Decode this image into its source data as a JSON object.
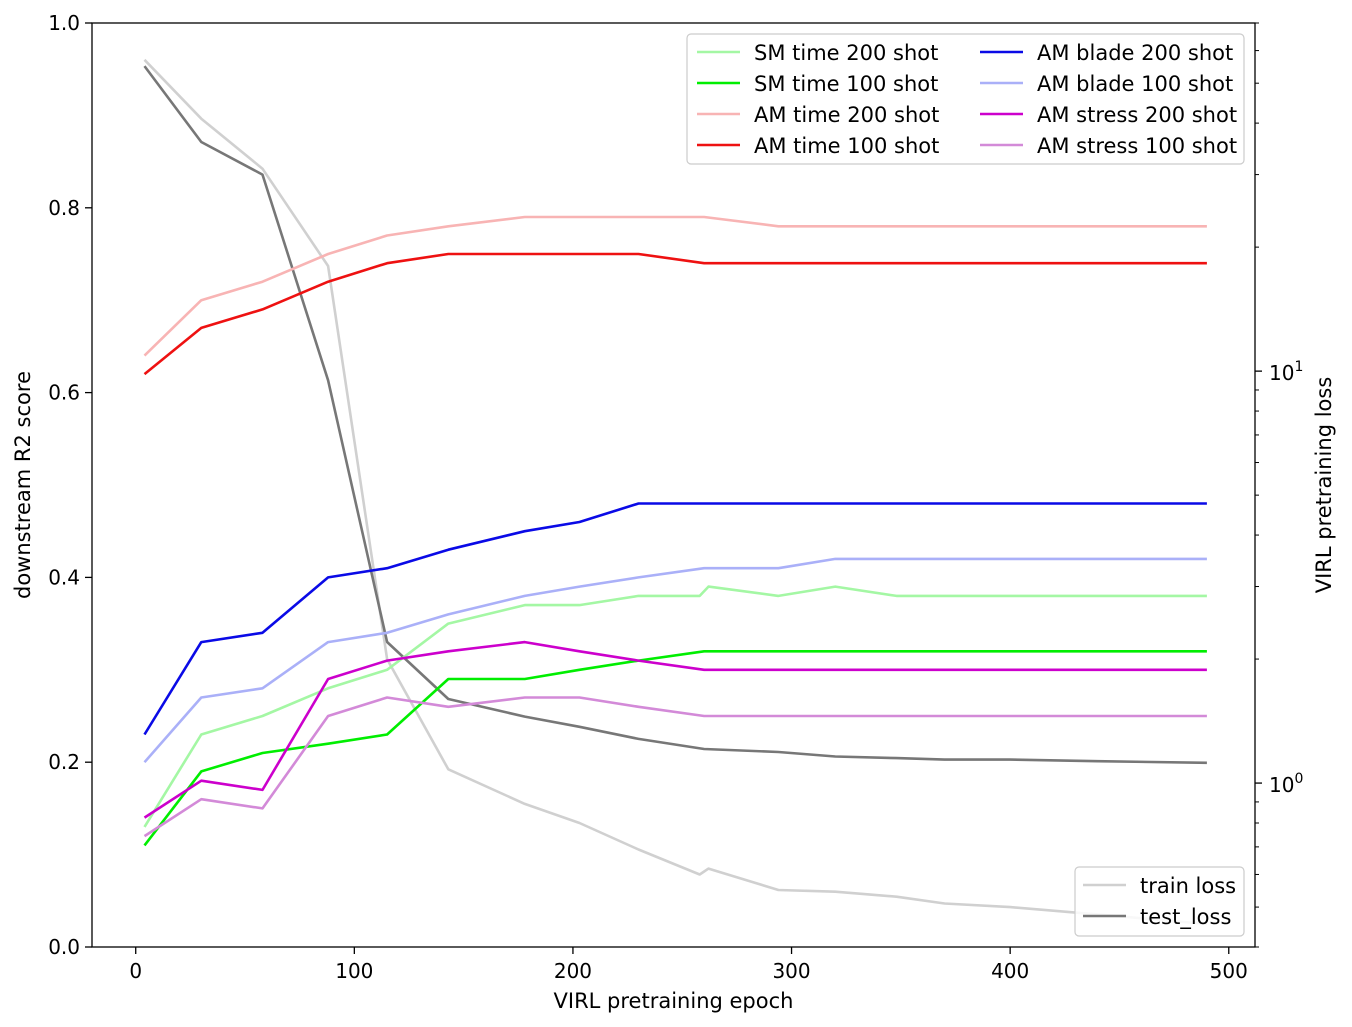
{
  "chart_data": {
    "type": "line",
    "title": "",
    "xlabel": "VIRL pretraining epoch",
    "ylabel": "downstream R2 score",
    "y2label": "VIRL pretraining loss",
    "xlim": [
      -20,
      512
    ],
    "ylim": [
      0,
      1
    ],
    "y2_scale": "log",
    "y2lim": [
      0.4,
      70
    ],
    "x_ticks": [
      0,
      100,
      200,
      300,
      400,
      500
    ],
    "x_tick_labels": [
      "0",
      "100",
      "200",
      "300",
      "400",
      "500"
    ],
    "y_ticks": [
      0.0,
      0.2,
      0.4,
      0.6,
      0.8,
      1.0
    ],
    "y_tick_labels": [
      "0.0",
      "0.2",
      "0.4",
      "0.6",
      "0.8",
      "1.0"
    ],
    "y2_ticks": [
      1,
      10
    ],
    "y2_tick_labels": [
      {
        "base": "10",
        "exp": "0"
      },
      {
        "base": "10",
        "exp": "1"
      }
    ],
    "grid": false,
    "legend_position": "top-right",
    "loss_legend_position": "bottom-right",
    "series": [
      {
        "name": "SM time 200 shot",
        "color": "#a4f7a4",
        "axis": "left",
        "x": [
          4,
          30,
          58,
          88,
          115,
          143,
          178,
          203,
          230,
          258,
          262,
          294,
          320,
          348,
          490
        ],
        "y": [
          0.13,
          0.23,
          0.25,
          0.28,
          0.3,
          0.35,
          0.37,
          0.37,
          0.38,
          0.38,
          0.39,
          0.38,
          0.39,
          0.38,
          0.38
        ]
      },
      {
        "name": "SM time 100 shot",
        "color": "#00ee00",
        "axis": "left",
        "x": [
          4,
          30,
          58,
          88,
          115,
          143,
          178,
          203,
          230,
          260,
          294,
          490
        ],
        "y": [
          0.11,
          0.19,
          0.21,
          0.22,
          0.23,
          0.29,
          0.29,
          0.3,
          0.31,
          0.32,
          0.32,
          0.32
        ]
      },
      {
        "name": "AM time 200 shot",
        "color": "#f8b4b4",
        "axis": "left",
        "x": [
          4,
          30,
          58,
          88,
          115,
          143,
          178,
          203,
          230,
          260,
          294,
          490
        ],
        "y": [
          0.64,
          0.7,
          0.72,
          0.75,
          0.77,
          0.78,
          0.79,
          0.79,
          0.79,
          0.79,
          0.78,
          0.78
        ]
      },
      {
        "name": "AM time 100 shot",
        "color": "#ee1111",
        "axis": "left",
        "x": [
          4,
          30,
          58,
          88,
          115,
          143,
          178,
          203,
          230,
          260,
          294,
          490
        ],
        "y": [
          0.62,
          0.67,
          0.69,
          0.72,
          0.74,
          0.75,
          0.75,
          0.75,
          0.75,
          0.74,
          0.74,
          0.74
        ]
      },
      {
        "name": "AM blade 200 shot",
        "color": "#0a0ae6",
        "axis": "left",
        "x": [
          4,
          30,
          58,
          88,
          115,
          143,
          178,
          203,
          230,
          260,
          294,
          490
        ],
        "y": [
          0.23,
          0.33,
          0.34,
          0.4,
          0.41,
          0.43,
          0.45,
          0.46,
          0.48,
          0.48,
          0.48,
          0.48
        ]
      },
      {
        "name": "AM blade 100 shot",
        "color": "#aab0f8",
        "axis": "left",
        "x": [
          4,
          30,
          58,
          88,
          115,
          143,
          178,
          203,
          230,
          260,
          294,
          320,
          490
        ],
        "y": [
          0.2,
          0.27,
          0.28,
          0.33,
          0.34,
          0.36,
          0.38,
          0.39,
          0.4,
          0.41,
          0.41,
          0.42,
          0.42
        ]
      },
      {
        "name": "AM stress 200 shot",
        "color": "#cc00cc",
        "axis": "left",
        "x": [
          4,
          30,
          58,
          88,
          115,
          143,
          178,
          203,
          230,
          260,
          294,
          490
        ],
        "y": [
          0.14,
          0.18,
          0.17,
          0.29,
          0.31,
          0.32,
          0.33,
          0.32,
          0.31,
          0.3,
          0.3,
          0.3
        ]
      },
      {
        "name": "AM stress 100 shot",
        "color": "#d38ad8",
        "axis": "left",
        "x": [
          4,
          30,
          58,
          88,
          115,
          143,
          178,
          203,
          230,
          260,
          294,
          490
        ],
        "y": [
          0.12,
          0.16,
          0.15,
          0.25,
          0.27,
          0.26,
          0.27,
          0.27,
          0.26,
          0.25,
          0.25,
          0.25
        ]
      },
      {
        "name": "train loss",
        "color": "#d0d0d0",
        "axis": "right",
        "x": [
          4,
          30,
          58,
          88,
          115,
          143,
          178,
          203,
          230,
          258,
          262,
          294,
          320,
          348,
          370,
          400,
          440,
          490
        ],
        "y": [
          57,
          41,
          31,
          18,
          2.0,
          1.08,
          0.89,
          0.8,
          0.69,
          0.6,
          0.62,
          0.55,
          0.545,
          0.53,
          0.51,
          0.5,
          0.48,
          0.455
        ]
      },
      {
        "name": "test_loss",
        "color": "#777777",
        "axis": "right",
        "x": [
          4,
          30,
          58,
          88,
          115,
          143,
          178,
          203,
          230,
          260,
          294,
          320,
          348,
          370,
          400,
          440,
          490
        ],
        "y": [
          55,
          36,
          30,
          9.5,
          2.2,
          1.6,
          1.45,
          1.37,
          1.28,
          1.21,
          1.19,
          1.16,
          1.15,
          1.14,
          1.14,
          1.13,
          1.12
        ]
      }
    ],
    "legend_main_order": [
      "SM time 200 shot",
      "SM time 100 shot",
      "AM time 200 shot",
      "AM time 100 shot",
      "AM blade 200 shot",
      "AM blade 100 shot",
      "AM stress 200 shot",
      "AM stress 100 shot"
    ],
    "legend_loss_order": [
      "train loss",
      "test_loss"
    ]
  }
}
